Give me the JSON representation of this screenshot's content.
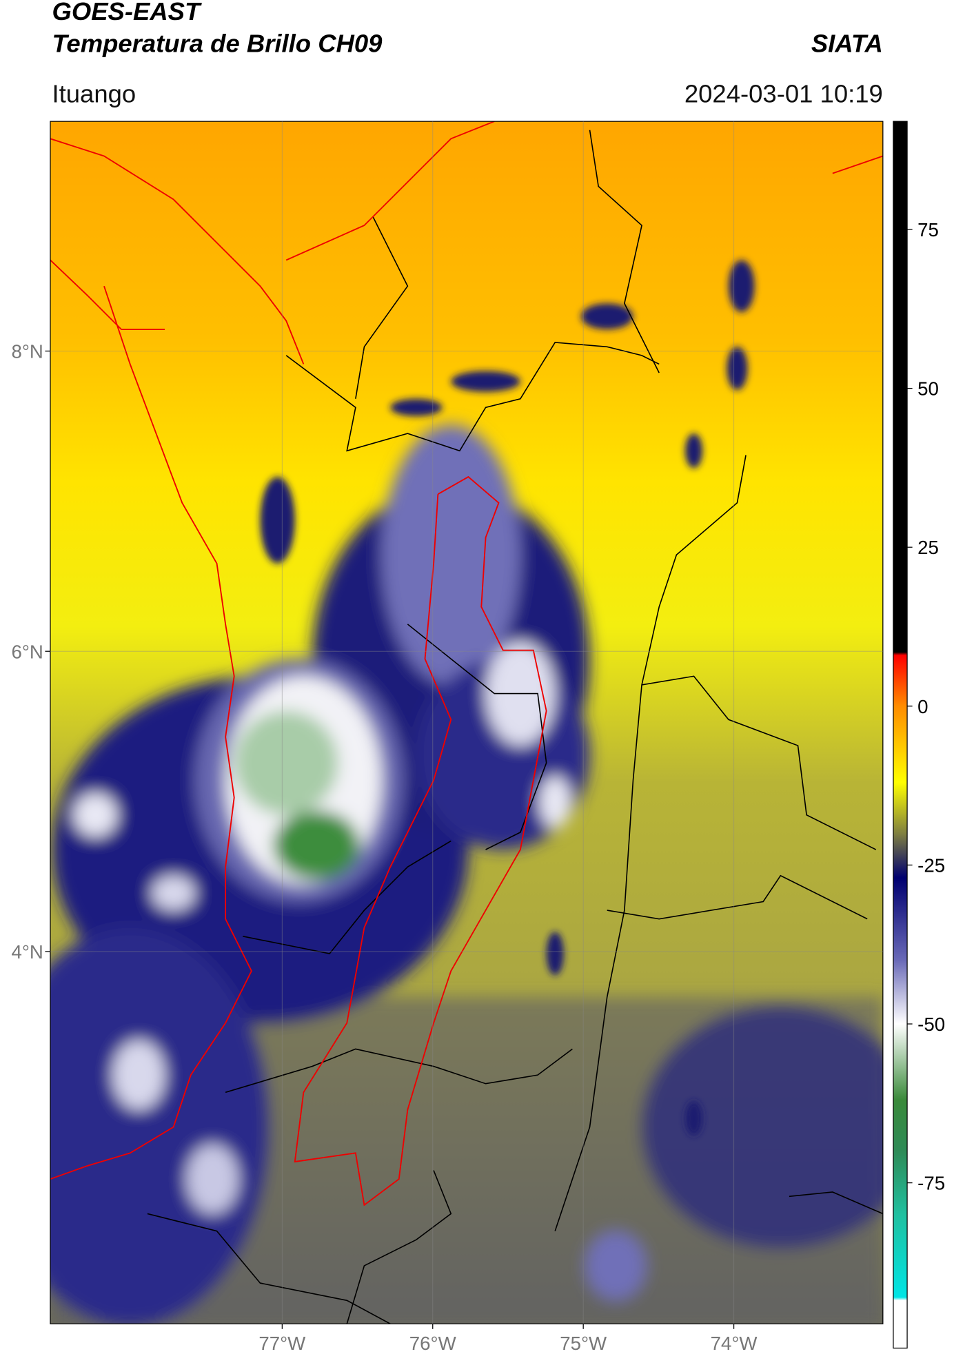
{
  "header": {
    "title": "GOES-EAST",
    "subtitle": "Temperatura de Brillo CH09",
    "org": "SIATA",
    "location": "Ituango",
    "datetime": "2024-03-01 10:19"
  },
  "map": {
    "xlim": [
      -78.54,
      -73.01
    ],
    "ylim": [
      1.52,
      9.53
    ],
    "xticks": [
      {
        "value": -77,
        "label": "77°W"
      },
      {
        "value": -76,
        "label": "76°W"
      },
      {
        "value": -75,
        "label": "75°W"
      },
      {
        "value": -74,
        "label": "74°W"
      }
    ],
    "yticks": [
      {
        "value": 8,
        "label": "8°N"
      },
      {
        "value": 6,
        "label": "6°N"
      },
      {
        "value": 4,
        "label": "4°N"
      }
    ],
    "grid": true
  },
  "colorbar": {
    "lim": [
      -101,
      92
    ],
    "ticks": [
      75,
      50,
      25,
      0,
      -25,
      -50,
      -75
    ],
    "stops": [
      {
        "value": 92,
        "color": "#000000"
      },
      {
        "value": 8.5,
        "color": "#000000"
      },
      {
        "value": 8,
        "color": "#ff0000"
      },
      {
        "value": 0,
        "color": "#ff8c00"
      },
      {
        "value": -12,
        "color": "#ffff00"
      },
      {
        "value": -20,
        "color": "#808040"
      },
      {
        "value": -27,
        "color": "#000070"
      },
      {
        "value": -40,
        "color": "#6a6ab8"
      },
      {
        "value": -50,
        "color": "#ffffff"
      },
      {
        "value": -62,
        "color": "#3a8a3a"
      },
      {
        "value": -70,
        "color": "#2e8b57"
      },
      {
        "value": -80,
        "color": "#20c0a0"
      },
      {
        "value": -93,
        "color": "#00e5e5"
      },
      {
        "value": -93.5,
        "color": "#ffffff"
      },
      {
        "value": -101,
        "color": "#ffffff"
      }
    ]
  }
}
